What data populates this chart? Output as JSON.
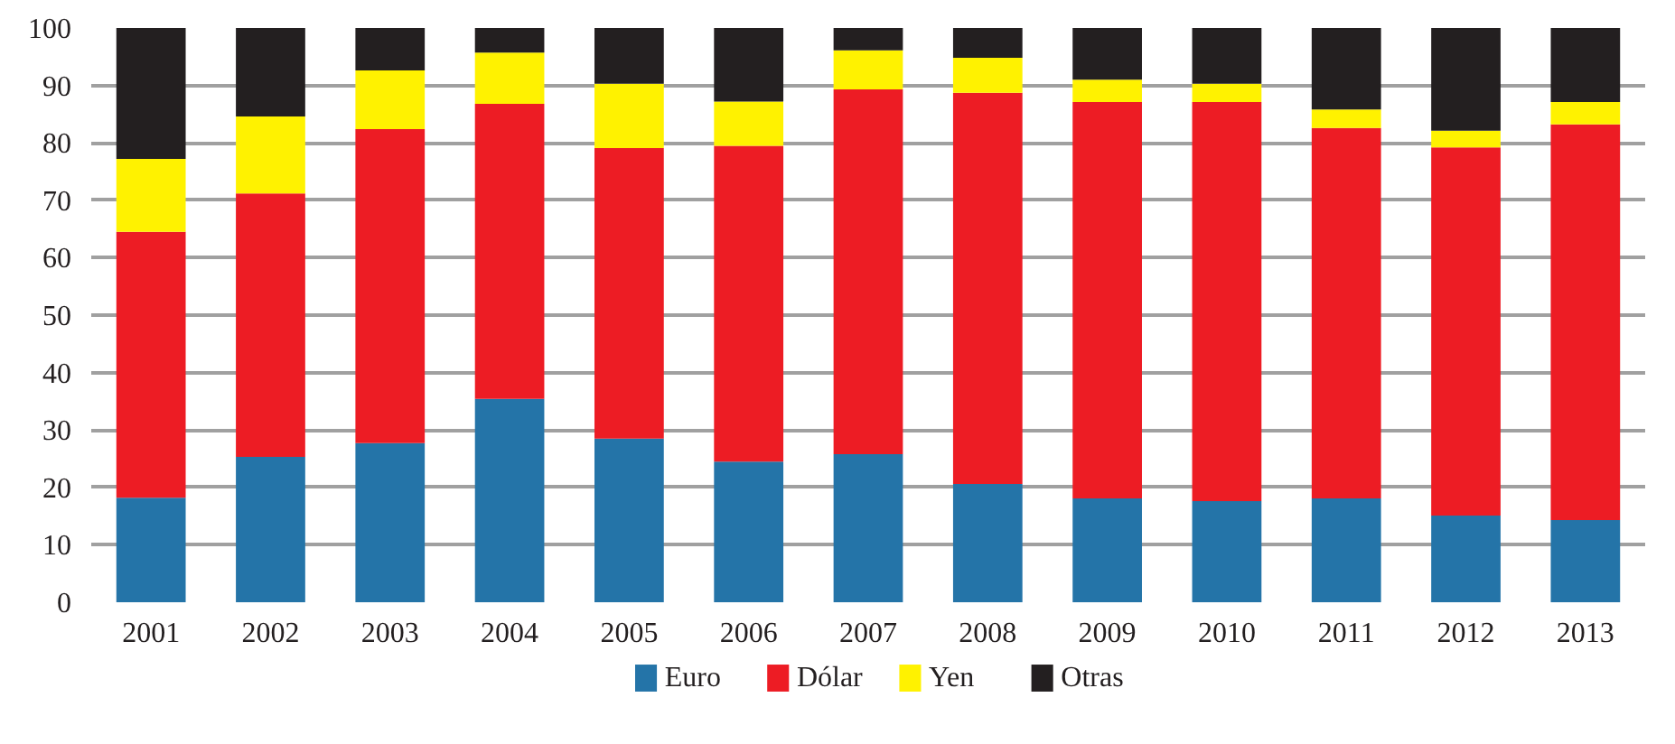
{
  "chart_data": {
    "type": "bar",
    "stacked": true,
    "categories": [
      "2001",
      "2002",
      "2003",
      "2004",
      "2005",
      "2006",
      "2007",
      "2008",
      "2009",
      "2010",
      "2011",
      "2012",
      "2013"
    ],
    "series": [
      {
        "name": "Euro",
        "color": "#2474a8",
        "values": [
          18.2,
          25.3,
          27.7,
          35.4,
          28.5,
          24.5,
          25.8,
          20.6,
          18.1,
          17.6,
          18.1,
          15.1,
          14.3
        ]
      },
      {
        "name": "Dólar",
        "color": "#ed1c24",
        "values": [
          46.3,
          45.9,
          54.7,
          51.4,
          50.6,
          55.0,
          63.5,
          68.1,
          69.0,
          69.5,
          64.5,
          64.1,
          68.9
        ]
      },
      {
        "name": "Yen",
        "color": "#fff200",
        "values": [
          12.7,
          13.4,
          10.2,
          8.9,
          11.2,
          7.7,
          6.8,
          6.1,
          3.9,
          3.2,
          3.2,
          2.9,
          3.9
        ]
      },
      {
        "name": "Otras",
        "color": "#231f20",
        "values": [
          22.8,
          15.4,
          7.4,
          4.3,
          9.7,
          12.8,
          3.9,
          5.2,
          9.0,
          9.7,
          14.2,
          17.9,
          12.9
        ]
      }
    ],
    "ylim": [
      0,
      100
    ],
    "yticks": [
      0,
      10,
      20,
      30,
      40,
      50,
      60,
      70,
      80,
      90,
      100
    ],
    "grid": "y",
    "legend": "bottom"
  }
}
